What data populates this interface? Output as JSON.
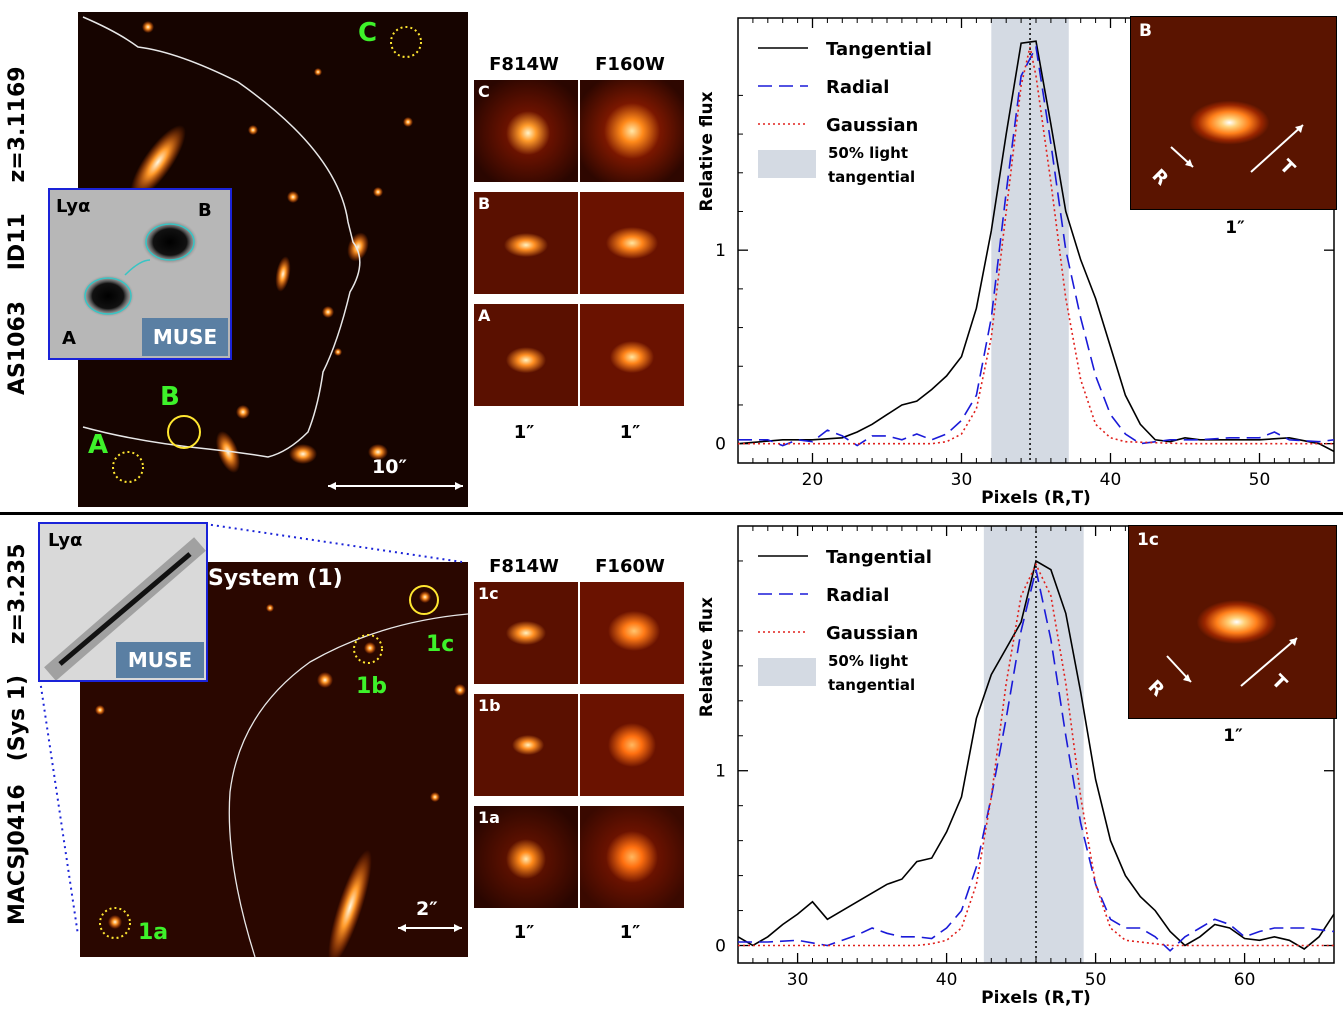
{
  "top": {
    "side_label": "AS1063     ID11     z=3.1169",
    "side_parts": [
      "AS1063",
      "ID11",
      "z=3.1169"
    ],
    "images": {
      "A": "A",
      "B": "B",
      "C": "C"
    },
    "scale_bar": "10″",
    "inset": {
      "lya": "Lyα",
      "label_a": "A",
      "label_b": "B",
      "muse": "MUSE"
    },
    "stamps": {
      "col1": "F814W",
      "col2": "F160W",
      "rows": [
        "C",
        "B",
        "A"
      ],
      "scale": "1″"
    },
    "profile": {
      "label": "B",
      "scale": "1″",
      "r": "R",
      "t": "T"
    }
  },
  "bottom": {
    "side_parts": [
      "MACSJ0416",
      "(Sys 1)",
      "z=3.235"
    ],
    "images": {
      "1a": "1a",
      "1b": "1b",
      "1c": "1c"
    },
    "system": "System (1)",
    "scale_bar": "2″",
    "inset": {
      "lya": "Lyα",
      "muse": "MUSE"
    },
    "stamps": {
      "col1": "F814W",
      "col2": "F160W",
      "rows": [
        "1c",
        "1b",
        "1a"
      ],
      "scale": "1″"
    },
    "profile": {
      "label": "1c",
      "scale": "1″",
      "r": "R",
      "t": "T"
    }
  },
  "chart_data": [
    {
      "type": "line",
      "xlabel": "Pixels (R,T)",
      "ylabel": "Relative flux",
      "xlim": [
        15,
        55
      ],
      "ylim": [
        -0.1,
        2.2
      ],
      "xticks": [
        20,
        30,
        40,
        50
      ],
      "yticks": [
        0,
        1
      ],
      "center_line_x": 34.6,
      "shaded_band": [
        32,
        37.2
      ],
      "legend": [
        "Tangential",
        "Radial",
        "Gaussian",
        "50% light",
        "tangential"
      ],
      "colors": {
        "Tangential": "#000000",
        "Radial": "#1a1ad8",
        "Gaussian": "#e0201c",
        "band": "#d4dae3"
      },
      "series": [
        {
          "name": "Tangential",
          "x": [
            15,
            18,
            20,
            22,
            23,
            24,
            25,
            26,
            27,
            28,
            29,
            30,
            31,
            32,
            33,
            34,
            35,
            36,
            37,
            38,
            39,
            40,
            41,
            42,
            43,
            44,
            45,
            46,
            48,
            50,
            52,
            54,
            55
          ],
          "y": [
            0.0,
            0.02,
            0.02,
            0.03,
            0.06,
            0.1,
            0.15,
            0.2,
            0.22,
            0.28,
            0.35,
            0.45,
            0.7,
            1.1,
            1.6,
            2.07,
            2.08,
            1.65,
            1.2,
            0.95,
            0.75,
            0.5,
            0.25,
            0.1,
            0.02,
            0.01,
            0.03,
            0.02,
            0.02,
            0.02,
            0.03,
            0.0,
            -0.04
          ]
        },
        {
          "name": "Radial",
          "x": [
            15,
            17,
            18,
            19,
            20,
            21,
            22,
            23,
            24,
            25,
            26,
            27,
            28,
            29,
            30,
            31,
            32,
            33,
            34,
            35,
            36,
            37,
            38,
            39,
            40,
            41,
            42,
            44,
            46,
            48,
            50,
            51,
            52,
            54,
            55
          ],
          "y": [
            0.02,
            0.02,
            -0.01,
            0.02,
            0.01,
            0.07,
            0.04,
            -0.01,
            0.04,
            0.04,
            0.02,
            0.05,
            0.02,
            0.05,
            0.12,
            0.25,
            0.65,
            1.3,
            1.9,
            2.05,
            1.55,
            1.0,
            0.65,
            0.35,
            0.15,
            0.05,
            0.0,
            0.02,
            0.02,
            0.03,
            0.03,
            0.06,
            0.02,
            0.01,
            0.02
          ]
        },
        {
          "name": "Gaussian",
          "x": [
            15,
            20,
            25,
            28,
            29,
            30,
            31,
            32,
            33,
            34,
            34.6,
            35,
            36,
            37,
            38,
            39,
            40,
            41,
            45,
            50,
            55
          ],
          "y": [
            0,
            0,
            0,
            0,
            0.01,
            0.05,
            0.18,
            0.55,
            1.2,
            1.85,
            2.05,
            1.9,
            1.35,
            0.75,
            0.33,
            0.1,
            0.03,
            0.01,
            0,
            0,
            0
          ]
        }
      ]
    },
    {
      "type": "line",
      "xlabel": "Pixels (R,T)",
      "ylabel": "Relative flux",
      "xlim": [
        26,
        66
      ],
      "ylim": [
        -0.1,
        2.4
      ],
      "xticks": [
        30,
        40,
        50,
        60
      ],
      "yticks": [
        0,
        1
      ],
      "center_line_x": 46,
      "shaded_band": [
        42.5,
        49.2
      ],
      "legend": [
        "Tangential",
        "Radial",
        "Gaussian",
        "50% light",
        "tangential"
      ],
      "colors": {
        "Tangential": "#000000",
        "Radial": "#1a1ad8",
        "Gaussian": "#e0201c",
        "band": "#d4dae3"
      },
      "series": [
        {
          "name": "Tangential",
          "x": [
            26,
            27,
            28,
            29,
            30,
            31,
            32,
            33,
            34,
            35,
            36,
            37,
            38,
            39,
            40,
            41,
            42,
            43,
            44,
            45,
            46,
            47,
            48,
            49,
            50,
            51,
            52,
            53,
            54,
            55,
            56,
            57,
            58,
            59,
            60,
            61,
            62,
            63,
            64,
            65,
            66
          ],
          "y": [
            0.05,
            0.0,
            0.05,
            0.12,
            0.18,
            0.25,
            0.15,
            0.2,
            0.25,
            0.3,
            0.35,
            0.38,
            0.48,
            0.5,
            0.65,
            0.85,
            1.3,
            1.55,
            1.7,
            1.85,
            2.2,
            2.15,
            1.9,
            1.45,
            0.95,
            0.6,
            0.4,
            0.28,
            0.2,
            0.08,
            0.0,
            0.05,
            0.12,
            0.1,
            0.04,
            0.03,
            0.05,
            0.03,
            -0.02,
            0.05,
            0.18
          ]
        },
        {
          "name": "Radial",
          "x": [
            26,
            28,
            30,
            32,
            34,
            35,
            36,
            37,
            38,
            39,
            40,
            41,
            42,
            43,
            44,
            45,
            46,
            47,
            48,
            49,
            50,
            51,
            52,
            53,
            54,
            55,
            56,
            57,
            58,
            59,
            60,
            61,
            62,
            64,
            66
          ],
          "y": [
            0.02,
            0.02,
            0.03,
            0.0,
            0.06,
            0.1,
            0.07,
            0.05,
            0.05,
            0.04,
            0.1,
            0.2,
            0.45,
            0.85,
            1.3,
            1.8,
            2.15,
            1.75,
            1.2,
            0.7,
            0.35,
            0.15,
            0.1,
            0.1,
            0.05,
            -0.03,
            0.05,
            0.1,
            0.15,
            0.12,
            0.05,
            0.08,
            0.1,
            0.1,
            0.08
          ]
        },
        {
          "name": "Gaussian",
          "x": [
            26,
            30,
            35,
            38,
            39,
            40,
            41,
            42,
            43,
            44,
            45,
            46,
            47,
            48,
            49,
            50,
            51,
            52,
            55,
            60,
            66
          ],
          "y": [
            0,
            0,
            0,
            0,
            0.01,
            0.03,
            0.1,
            0.35,
            0.85,
            1.5,
            2.0,
            2.18,
            2.0,
            1.5,
            0.85,
            0.35,
            0.1,
            0.03,
            0,
            0,
            0
          ]
        }
      ]
    }
  ]
}
